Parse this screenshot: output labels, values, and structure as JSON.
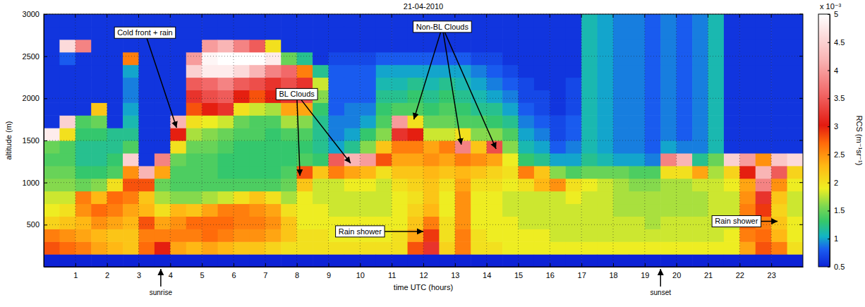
{
  "chart_data": {
    "type": "heatmap",
    "title": "21-04-2010",
    "x_label": "time UTC (hours)",
    "y_label": "altitude (m)",
    "xlim": [
      0,
      24
    ],
    "xticks": [
      1,
      2,
      3,
      4,
      5,
      6,
      7,
      8,
      9,
      10,
      11,
      12,
      13,
      14,
      15,
      16,
      17,
      18,
      19,
      20,
      21,
      22,
      23
    ],
    "ylim": [
      0,
      3000
    ],
    "yticks": [
      500,
      1000,
      1500,
      2000,
      2500,
      3000
    ],
    "grid": true,
    "x": [
      0,
      0.5,
      1,
      1.5,
      2,
      2.5,
      3,
      3.5,
      4,
      4.5,
      5,
      5.5,
      6,
      6.5,
      7,
      7.5,
      8,
      8.5,
      9,
      9.5,
      10,
      10.5,
      11,
      11.5,
      12,
      12.5,
      13,
      13.5,
      14,
      14.5,
      15,
      15.5,
      16,
      16.5,
      17,
      17.5,
      18,
      18.5,
      19,
      19.5,
      20,
      20.5,
      21,
      21.5,
      22,
      22.5,
      23,
      23.5
    ],
    "y": [
      0,
      150,
      300,
      450,
      600,
      750,
      900,
      1050,
      1200,
      1350,
      1500,
      1650,
      1800,
      1950,
      2100,
      2250,
      2400,
      2550,
      2700,
      2850
    ],
    "values": [
      [
        0.5,
        2.8,
        2.6,
        2.1,
        1.9,
        1.8,
        1.6,
        1.5,
        1.4,
        1.5,
        4.8,
        0.6,
        0.6,
        0.6,
        0.6,
        0.6,
        0.6,
        0.6,
        0.6,
        0.6
      ],
      [
        0.5,
        2.7,
        2.5,
        2.2,
        2.0,
        1.8,
        1.6,
        1.5,
        1.4,
        1.4,
        2.0,
        4.5,
        0.6,
        0.6,
        0.6,
        0.6,
        0.8,
        4.6,
        0.6,
        0.6
      ],
      [
        0.5,
        2.6,
        2.4,
        2.3,
        2.5,
        2.6,
        1.5,
        1.3,
        1.2,
        1.2,
        1.3,
        1.4,
        0.6,
        0.6,
        0.6,
        0.6,
        0.6,
        3.8,
        0.6,
        0.6
      ],
      [
        0.5,
        2.4,
        2.3,
        2.5,
        2.7,
        2.3,
        1.6,
        1.3,
        1.2,
        1.2,
        1.3,
        1.5,
        2.2,
        0.6,
        0.6,
        0.6,
        0.6,
        0.6,
        0.6,
        0.6
      ],
      [
        0.5,
        2.3,
        2.2,
        2.4,
        2.6,
        2.7,
        2.0,
        1.4,
        1.3,
        1.2,
        1.2,
        0.6,
        0.6,
        0.6,
        0.6,
        0.6,
        0.6,
        0.6,
        0.6,
        0.6
      ],
      [
        0.5,
        2.2,
        2.2,
        2.3,
        2.4,
        2.6,
        2.8,
        2.5,
        4.5,
        1.4,
        1.2,
        1.1,
        1.0,
        0.9,
        0.9,
        1.0,
        2.6,
        0.6,
        0.6,
        0.6
      ],
      [
        0.5,
        2.7,
        2.6,
        2.8,
        2.3,
        2.2,
        2.8,
        4.2,
        0.6,
        0.6,
        0.6,
        0.6,
        0.6,
        0.6,
        0.6,
        0.6,
        0.6,
        0.6,
        0.6,
        0.6
      ],
      [
        0.5,
        3.0,
        2.6,
        2.4,
        2.0,
        1.7,
        1.5,
        2.4,
        3.8,
        0.6,
        0.6,
        0.6,
        0.6,
        0.6,
        0.6,
        0.6,
        0.6,
        0.6,
        0.6,
        0.6
      ],
      [
        0.5,
        2.4,
        2.6,
        2.5,
        2.3,
        1.6,
        1.4,
        1.4,
        1.5,
        2.0,
        3.0,
        4.2,
        0.6,
        0.6,
        0.6,
        0.6,
        0.6,
        0.6,
        0.6,
        0.6
      ],
      [
        0.5,
        2.3,
        2.6,
        2.7,
        2.2,
        1.6,
        1.4,
        1.4,
        1.4,
        1.5,
        1.7,
        2.0,
        2.8,
        3.2,
        3.5,
        4.5,
        4.0,
        0.6,
        0.6,
        0.6
      ],
      [
        0.5,
        2.4,
        2.7,
        2.7,
        2.4,
        1.7,
        1.4,
        1.4,
        1.4,
        1.5,
        1.6,
        1.9,
        3.0,
        3.4,
        3.6,
        4.8,
        4.9,
        4.0,
        0.6,
        0.6
      ],
      [
        0.5,
        2.3,
        2.6,
        2.7,
        2.6,
        1.8,
        1.4,
        1.3,
        1.3,
        1.4,
        1.5,
        1.8,
        3.2,
        3.5,
        3.8,
        4.8,
        5.0,
        4.2,
        0.6,
        0.6
      ],
      [
        0.5,
        2.2,
        2.5,
        2.6,
        2.6,
        2.0,
        1.4,
        1.3,
        1.3,
        1.3,
        1.4,
        1.5,
        2.0,
        3.0,
        3.5,
        4.6,
        5.0,
        3.8,
        0.6,
        0.6
      ],
      [
        0.5,
        2.2,
        2.5,
        2.6,
        2.5,
        2.2,
        1.4,
        1.3,
        1.3,
        1.3,
        1.4,
        1.4,
        1.8,
        2.8,
        3.4,
        4.2,
        5.0,
        3.5,
        0.6,
        0.6
      ],
      [
        0.5,
        2.1,
        2.4,
        2.5,
        2.4,
        2.0,
        1.4,
        1.3,
        1.3,
        1.3,
        1.3,
        1.4,
        1.7,
        3.0,
        3.2,
        3.8,
        4.8,
        2.0,
        0.6,
        0.6
      ],
      [
        0.5,
        2.0,
        2.2,
        2.2,
        2.0,
        1.7,
        1.5,
        1.4,
        1.3,
        1.3,
        1.4,
        1.7,
        2.4,
        3.2,
        3.4,
        3.6,
        1.5,
        0.6,
        0.6,
        0.6
      ],
      [
        0.5,
        2.0,
        2.0,
        1.9,
        1.9,
        1.9,
        2.2,
        2.8,
        1.4,
        1.3,
        1.4,
        1.6,
        2.4,
        3.4,
        3.2,
        2.6,
        1.2,
        0.6,
        0.6,
        0.6
      ],
      [
        0.5,
        2.0,
        2.0,
        1.9,
        1.9,
        1.8,
        1.8,
        2.2,
        1.3,
        1.2,
        1.2,
        1.2,
        1.3,
        1.6,
        1.8,
        1.2,
        0.6,
        0.6,
        0.6,
        0.6
      ],
      [
        0.5,
        2.0,
        1.9,
        1.9,
        1.8,
        1.8,
        1.8,
        2.6,
        3.5,
        1.0,
        0.9,
        0.9,
        0.8,
        0.8,
        0.8,
        0.8,
        0.7,
        0.6,
        0.6,
        0.6
      ],
      [
        0.5,
        2.0,
        1.9,
        1.9,
        1.8,
        1.8,
        1.9,
        2.4,
        4.2,
        1.2,
        1.0,
        0.9,
        0.9,
        0.8,
        0.8,
        0.8,
        0.7,
        0.6,
        0.6,
        0.6
      ],
      [
        0.5,
        2.0,
        1.9,
        1.9,
        1.8,
        1.8,
        1.9,
        2.3,
        4.0,
        1.6,
        1.3,
        1.0,
        0.9,
        0.8,
        0.8,
        0.8,
        0.7,
        0.6,
        0.6,
        0.6
      ],
      [
        0.5,
        2.0,
        1.9,
        1.9,
        1.8,
        1.8,
        1.8,
        2.0,
        2.8,
        2.2,
        1.6,
        1.4,
        1.3,
        1.2,
        1.1,
        1.0,
        0.8,
        0.6,
        0.6,
        0.6
      ],
      [
        0.5,
        2.0,
        2.0,
        1.9,
        1.9,
        1.9,
        2.0,
        2.2,
        2.4,
        2.6,
        3.2,
        4.0,
        1.4,
        1.2,
        1.1,
        1.0,
        0.8,
        0.6,
        0.6,
        0.6
      ],
      [
        0.5,
        2.8,
        2.4,
        2.2,
        2.1,
        2.0,
        2.1,
        2.2,
        2.4,
        2.6,
        3.0,
        2.0,
        1.4,
        1.3,
        1.2,
        1.0,
        0.8,
        0.6,
        0.6,
        0.6
      ],
      [
        0.5,
        3.2,
        2.9,
        2.6,
        2.3,
        2.2,
        2.2,
        2.3,
        2.5,
        2.4,
        1.8,
        1.5,
        1.3,
        1.2,
        1.1,
        1.0,
        0.8,
        0.6,
        0.6,
        0.6
      ],
      [
        0.5,
        2.1,
        2.0,
        2.0,
        1.9,
        1.9,
        2.0,
        2.2,
        2.4,
        2.6,
        1.8,
        1.5,
        1.4,
        1.3,
        1.2,
        1.0,
        0.8,
        0.6,
        0.6,
        0.6
      ],
      [
        0.5,
        2.6,
        2.6,
        2.5,
        2.5,
        2.5,
        2.4,
        2.3,
        2.6,
        3.8,
        2.0,
        1.4,
        1.3,
        1.2,
        1.1,
        1.0,
        0.8,
        0.6,
        0.6,
        0.6
      ],
      [
        0.5,
        2.0,
        2.0,
        1.9,
        1.9,
        1.9,
        2.0,
        2.2,
        2.5,
        2.2,
        1.6,
        1.4,
        1.2,
        1.1,
        1.0,
        0.9,
        0.7,
        0.6,
        0.6,
        0.6
      ],
      [
        0.5,
        2.0,
        1.9,
        1.9,
        1.9,
        1.9,
        2.0,
        2.1,
        2.4,
        3.4,
        1.6,
        1.3,
        1.2,
        1.0,
        0.9,
        0.8,
        0.7,
        0.6,
        0.6,
        0.6
      ],
      [
        0.5,
        1.9,
        1.9,
        1.9,
        1.8,
        1.8,
        1.9,
        2.0,
        1.9,
        1.6,
        1.4,
        1.2,
        1.0,
        0.9,
        0.8,
        0.7,
        0.6,
        0.6,
        0.6,
        0.6
      ],
      [
        0.5,
        1.9,
        1.9,
        1.8,
        1.8,
        1.8,
        2.0,
        2.6,
        1.3,
        1.1,
        1.0,
        0.9,
        0.8,
        0.7,
        0.7,
        0.6,
        0.6,
        0.6,
        0.6,
        0.6
      ],
      [
        0.5,
        1.9,
        1.9,
        1.8,
        1.8,
        1.8,
        2.3,
        2.2,
        1.2,
        1.0,
        0.9,
        0.8,
        0.7,
        0.7,
        0.6,
        0.6,
        0.6,
        0.6,
        0.6,
        0.6
      ],
      [
        0.5,
        1.9,
        1.8,
        1.8,
        1.8,
        1.8,
        2.5,
        1.6,
        1.0,
        0.8,
        0.7,
        0.7,
        0.6,
        0.6,
        0.6,
        0.6,
        0.6,
        0.6,
        0.6,
        0.6
      ],
      [
        0.5,
        1.9,
        1.8,
        1.8,
        1.8,
        1.9,
        2.0,
        1.4,
        1.0,
        0.9,
        0.8,
        0.8,
        0.7,
        0.7,
        0.7,
        0.6,
        0.6,
        0.6,
        0.6,
        0.6
      ],
      [
        0.5,
        1.9,
        1.8,
        1.8,
        1.8,
        1.8,
        1.9,
        1.5,
        1.2,
        1.1,
        1.1,
        1.1,
        1.1,
        1.1,
        1.1,
        1.1,
        1.1,
        1.1,
        1.1,
        1.1
      ],
      [
        0.5,
        1.9,
        1.8,
        1.8,
        1.8,
        1.8,
        1.8,
        1.5,
        1.1,
        1.0,
        1.0,
        1.0,
        1.0,
        1.0,
        1.0,
        1.0,
        1.0,
        1.0,
        1.0,
        1.0
      ],
      [
        0.5,
        1.9,
        1.8,
        1.8,
        1.7,
        1.7,
        1.7,
        1.5,
        1.0,
        0.9,
        0.9,
        0.9,
        0.9,
        0.9,
        0.9,
        0.9,
        0.9,
        0.9,
        0.9,
        0.9
      ],
      [
        0.5,
        1.9,
        1.8,
        1.8,
        1.7,
        1.7,
        1.6,
        1.4,
        1.0,
        0.9,
        0.9,
        0.9,
        0.9,
        0.9,
        0.9,
        0.9,
        0.9,
        0.9,
        0.9,
        0.9
      ],
      [
        0.5,
        1.9,
        1.8,
        1.7,
        1.7,
        1.7,
        1.6,
        1.4,
        0.9,
        0.8,
        0.8,
        0.8,
        0.8,
        0.8,
        0.8,
        0.8,
        0.8,
        0.8,
        0.8,
        0.8
      ],
      [
        0.5,
        1.9,
        1.8,
        1.8,
        1.7,
        1.7,
        1.7,
        2.0,
        3.8,
        1.0,
        0.9,
        0.9,
        0.9,
        0.9,
        0.9,
        0.9,
        0.9,
        0.9,
        0.9,
        0.9
      ],
      [
        0.5,
        1.9,
        1.8,
        1.8,
        1.7,
        1.7,
        1.7,
        2.0,
        4.2,
        0.9,
        0.8,
        0.8,
        0.8,
        0.8,
        0.8,
        0.8,
        0.8,
        0.8,
        0.8,
        0.8
      ],
      [
        0.5,
        1.9,
        1.8,
        1.8,
        1.7,
        1.7,
        1.8,
        2.4,
        1.2,
        0.9,
        0.9,
        0.9,
        0.9,
        0.9,
        0.9,
        0.9,
        0.9,
        0.9,
        0.9,
        0.9
      ],
      [
        0.5,
        1.9,
        1.8,
        1.8,
        1.8,
        1.8,
        1.8,
        1.7,
        1.5,
        1.1,
        1.1,
        1.1,
        1.1,
        1.1,
        1.1,
        1.1,
        1.1,
        1.1,
        1.1,
        1.1
      ],
      [
        0.5,
        1.9,
        1.9,
        1.8,
        1.8,
        1.8,
        1.9,
        2.1,
        4.5,
        0.6,
        0.6,
        0.6,
        0.6,
        0.6,
        0.6,
        0.6,
        0.6,
        0.6,
        0.6,
        0.6
      ],
      [
        0.5,
        2.4,
        2.6,
        2.7,
        2.6,
        2.5,
        2.4,
        3.0,
        4.0,
        0.6,
        0.6,
        0.6,
        0.6,
        0.6,
        0.6,
        0.6,
        0.6,
        0.6,
        0.6,
        0.6
      ],
      [
        0.5,
        2.8,
        2.7,
        2.6,
        2.9,
        3.2,
        3.8,
        4.2,
        2.5,
        0.6,
        0.6,
        0.6,
        0.6,
        0.6,
        0.6,
        0.6,
        0.6,
        0.6,
        0.6,
        0.6
      ],
      [
        0.5,
        2.6,
        2.3,
        2.2,
        2.1,
        2.2,
        2.5,
        3.5,
        4.4,
        0.6,
        0.6,
        0.6,
        0.6,
        0.6,
        0.6,
        0.6,
        0.6,
        0.6,
        0.6,
        0.6
      ],
      [
        0.5,
        2.0,
        1.9,
        1.9,
        1.8,
        1.8,
        1.9,
        2.1,
        4.6,
        0.6,
        0.6,
        0.6,
        0.6,
        0.6,
        0.6,
        0.6,
        0.6,
        0.6,
        0.6,
        0.6
      ]
    ],
    "colorbar": {
      "label": "RCS (m⁻¹sr⁻¹)",
      "scale_label": "x 10⁻³",
      "range": [
        0.5,
        5
      ],
      "ticks": [
        0.5,
        1,
        1.5,
        2,
        2.5,
        3,
        3.5,
        4,
        4.5,
        5
      ]
    },
    "annotations": [
      {
        "text": "Cold front + rain",
        "points": [
          [
            4.2,
            1650
          ]
        ]
      },
      {
        "text": "BL Clouds",
        "points": [
          [
            8.1,
            1080
          ],
          [
            9.7,
            1230
          ]
        ]
      },
      {
        "text": "Non-BL Clouds",
        "points": [
          [
            11.7,
            1750
          ],
          [
            13.2,
            1450
          ],
          [
            14.3,
            1400
          ]
        ]
      },
      {
        "text": "Rain shower",
        "points": [
          [
            12.0,
            420
          ]
        ]
      },
      {
        "text": "Rain shower",
        "points": [
          [
            23.2,
            540
          ]
        ]
      }
    ],
    "x_annotations": [
      {
        "text": "sunrise",
        "x": 3.7
      },
      {
        "text": "sunset",
        "x": 19.5
      }
    ]
  }
}
